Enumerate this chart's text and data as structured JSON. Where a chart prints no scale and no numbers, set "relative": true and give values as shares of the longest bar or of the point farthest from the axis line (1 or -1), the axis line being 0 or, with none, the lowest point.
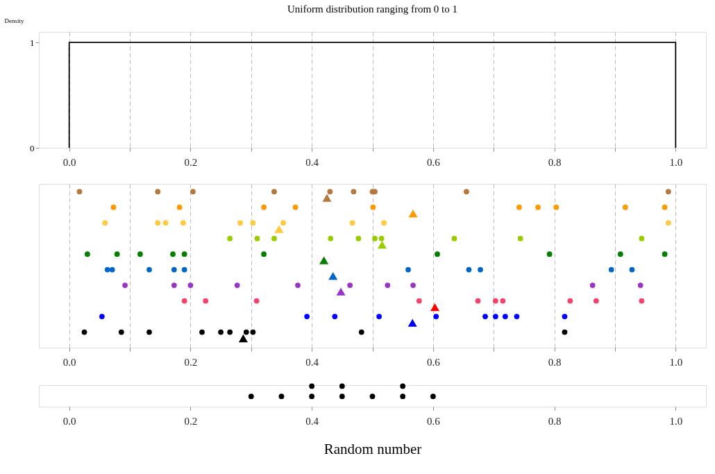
{
  "chart_data": [
    {
      "type": "line",
      "title": "Uniform distribution ranging from 0 to 1",
      "ylabel": "Density",
      "color": "#000000",
      "x": [
        0,
        0,
        1,
        1
      ],
      "values": [
        0,
        1,
        1,
        0
      ],
      "xlim": [
        -0.05,
        1.05
      ],
      "ylim": [
        0,
        1.1
      ],
      "xticks": [
        {
          "value": 0,
          "label": "0.0"
        },
        {
          "value": 0.1,
          "label": null
        },
        0.2,
        {
          "value": 0.3,
          "label": null
        },
        0.4,
        {
          "value": 0.5,
          "label": null
        },
        0.6,
        {
          "value": 0.7,
          "label": null
        },
        0.8,
        {
          "value": 0.9,
          "label": null
        },
        {
          "value": 1,
          "label": "1.0"
        }
      ],
      "yticks": [
        0,
        1
      ],
      "grid": "x",
      "line_style": "solid"
    },
    {
      "type": "scatter",
      "relative": true,
      "marker": "circle",
      "grid": "x",
      "xlim": [
        -0.05,
        1.05
      ],
      "xticks": [
        {
          "value": 0,
          "label": "0.0"
        },
        {
          "value": 0.1,
          "label": null
        },
        0.2,
        {
          "value": 0.3,
          "label": null
        },
        0.4,
        {
          "value": 0.5,
          "label": null
        },
        0.6,
        {
          "value": 0.7,
          "label": null
        },
        0.8,
        {
          "value": 0.9,
          "label": null
        },
        {
          "value": 1,
          "label": "1.0"
        }
      ],
      "series": [
        {
          "color": "#000000",
          "x": [
            0.025,
            0.086,
            0.132,
            0.219,
            0.25,
            0.265,
            0.292,
            0.303,
            0.482,
            0.817
          ],
          "values": [
            0.1,
            0.1,
            0.1,
            0.1,
            0.1,
            0.1,
            0.1,
            0.1,
            0.1,
            0.1
          ]
        },
        {
          "color": "#0000ff",
          "x": [
            0.054,
            0.392,
            0.438,
            0.511,
            0.605,
            0.686,
            0.703,
            0.719,
            0.738,
            0.817
          ],
          "values": [
            0.2,
            0.2,
            0.2,
            0.2,
            0.2,
            0.2,
            0.2,
            0.2,
            0.2,
            0.2
          ]
        },
        {
          "color": "#f7406a",
          "x": [
            0.19,
            0.225,
            0.309,
            0.577,
            0.674,
            0.703,
            0.715,
            0.826,
            0.869,
            0.944
          ],
          "values": [
            0.3,
            0.3,
            0.3,
            0.3,
            0.3,
            0.3,
            0.3,
            0.3,
            0.3,
            0.3
          ]
        },
        {
          "color": "#9933cc",
          "x": [
            0.092,
            0.173,
            0.2,
            0.277,
            0.377,
            0.463,
            0.525,
            0.567,
            0.863,
            0.942
          ],
          "values": [
            0.4,
            0.4,
            0.4,
            0.4,
            0.4,
            0.4,
            0.4,
            0.4,
            0.4,
            0.4
          ]
        },
        {
          "color": "#0066cc",
          "x": [
            0.063,
            0.071,
            0.132,
            0.173,
            0.19,
            0.559,
            0.659,
            0.678,
            0.894,
            0.928
          ],
          "values": [
            0.5,
            0.5,
            0.5,
            0.5,
            0.5,
            0.5,
            0.5,
            0.5,
            0.5,
            0.5
          ]
        },
        {
          "color": "#008000",
          "x": [
            0.03,
            0.079,
            0.117,
            0.171,
            0.19,
            0.321,
            0.607,
            0.792,
            0.909,
            0.982
          ],
          "values": [
            0.6,
            0.6,
            0.6,
            0.6,
            0.6,
            0.6,
            0.6,
            0.6,
            0.6,
            0.6
          ]
        },
        {
          "color": "#99cc00",
          "x": [
            0.265,
            0.31,
            0.338,
            0.431,
            0.477,
            0.504,
            0.515,
            0.635,
            0.744,
            0.944
          ],
          "values": [
            0.7,
            0.7,
            0.7,
            0.7,
            0.7,
            0.7,
            0.7,
            0.7,
            0.7,
            0.7
          ]
        },
        {
          "color": "#ffc940",
          "x": [
            0.059,
            0.146,
            0.159,
            0.188,
            0.282,
            0.303,
            0.353,
            0.467,
            0.519,
            0.988
          ],
          "values": [
            0.8,
            0.8,
            0.8,
            0.8,
            0.8,
            0.8,
            0.8,
            0.8,
            0.8,
            0.8
          ]
        },
        {
          "color": "#ff9900",
          "x": [
            0.073,
            0.182,
            0.321,
            0.373,
            0.501,
            0.742,
            0.773,
            0.803,
            0.917,
            0.982
          ],
          "values": [
            0.9,
            0.9,
            0.9,
            0.9,
            0.9,
            0.9,
            0.9,
            0.9,
            0.9,
            0.9
          ]
        },
        {
          "color": "#b5793f",
          "x": [
            0.017,
            0.146,
            0.204,
            0.338,
            0.43,
            0.469,
            0.5,
            0.504,
            0.655,
            0.988
          ],
          "values": [
            1,
            1,
            1,
            1,
            1,
            1,
            1,
            1,
            1,
            1
          ]
        },
        {
          "marker": "triangle",
          "colors": [
            "#000000",
            "#0000ff",
            "#ff0000",
            "#9933cc",
            "#0066cc",
            "#008000",
            "#99cc00",
            "#ffc940",
            "#ff9900",
            "#b5793f"
          ],
          "x": [
            0.287,
            0.566,
            0.603,
            0.448,
            0.435,
            0.42,
            0.516,
            0.346,
            0.567,
            0.425
          ],
          "values": [
            0.06,
            0.16,
            0.26,
            0.36,
            0.46,
            0.56,
            0.66,
            0.76,
            0.86,
            0.96
          ]
        }
      ]
    },
    {
      "type": "scatter",
      "relative": true,
      "marker": "circle",
      "color": "#000000",
      "xlabel": "Random number",
      "xlim": [
        -0.05,
        1.05
      ],
      "xticks": [
        {
          "value": 0,
          "label": "0.0"
        },
        0.2,
        0.4,
        0.6,
        0.8,
        {
          "value": 1,
          "label": "1.0"
        }
      ],
      "x": [
        0.3,
        0.35,
        0.4,
        0.4,
        0.45,
        0.45,
        0.5,
        0.55,
        0.55,
        0.6
      ],
      "values": [
        0.5,
        0.5,
        0.5,
        1,
        0.5,
        1,
        0.5,
        0.5,
        1,
        0.5
      ]
    }
  ]
}
